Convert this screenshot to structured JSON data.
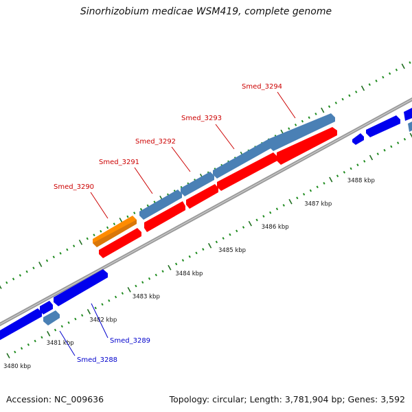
{
  "header": {
    "title": "Sinorhizobium medicae WSM419, complete genome"
  },
  "footer": {
    "accession": "Accession: NC_009636",
    "summary": "Topology: circular; Length: 3,781,904 bp; Genes: 3,592"
  },
  "colors": {
    "backbone": "#888888",
    "tick_dots": "#1e8b1e",
    "tick_major": "#1f6e1f",
    "gene_forward": "#4a80b5",
    "gene_forward_alt": "#ff8c00",
    "gene_reverse": "#ff0000",
    "gene_other": "#0000ee",
    "label_forward": "#cc0000",
    "label_reverse": "#0000cc"
  },
  "kbp_ticks": [
    {
      "label": "3480 kbp",
      "pos": 3480
    },
    {
      "label": "3481 kbp",
      "pos": 3481
    },
    {
      "label": "3482 kbp",
      "pos": 3482
    },
    {
      "label": "3483 kbp",
      "pos": 3483
    },
    {
      "label": "3484 kbp",
      "pos": 3484
    },
    {
      "label": "3485 kbp",
      "pos": 3485
    },
    {
      "label": "3486 kbp",
      "pos": 3486
    },
    {
      "label": "3487 kbp",
      "pos": 3487
    },
    {
      "label": "3488 kbp",
      "pos": 3488
    }
  ],
  "genes": [
    {
      "label": "Smed_3288",
      "strand": "outer-lower"
    },
    {
      "label": "Smed_3289",
      "strand": "inner"
    },
    {
      "label": "Smed_3290",
      "strand": "outer-upper"
    },
    {
      "label": "Smed_3291",
      "strand": "outer-upper"
    },
    {
      "label": "Smed_3292",
      "strand": "outer-upper"
    },
    {
      "label": "Smed_3293",
      "strand": "outer-upper"
    },
    {
      "label": "Smed_3294",
      "strand": "outer-upper"
    }
  ]
}
